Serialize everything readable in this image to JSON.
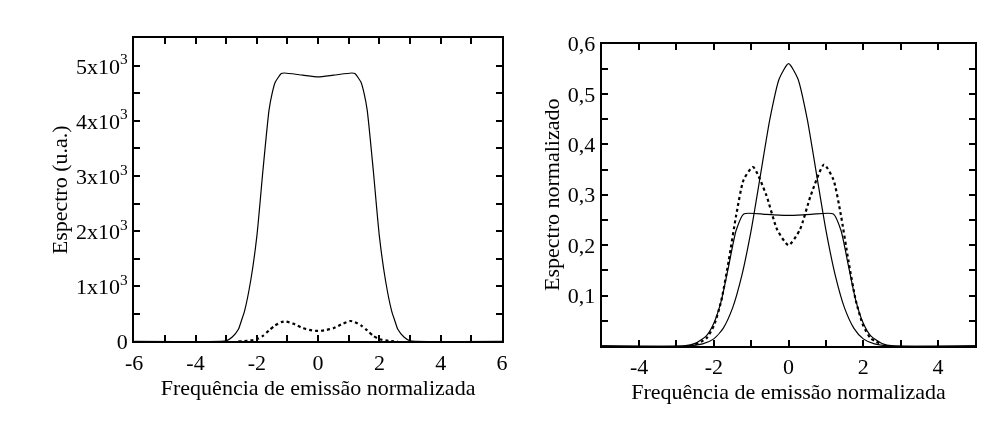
{
  "chart_data": [
    {
      "type": "line",
      "xlabel": "Frequência de emissão normalizada",
      "ylabel": "Espectro (u.a.)",
      "xlim": [
        -6,
        6
      ],
      "ylim": [
        0,
        5500
      ],
      "xticks": [
        -6,
        {
          "value": -5,
          "label": null
        },
        -4,
        {
          "value": -3,
          "label": null
        },
        -2,
        {
          "value": -1,
          "label": null
        },
        0,
        {
          "value": 1,
          "label": null
        },
        2,
        {
          "value": 3,
          "label": null
        },
        4,
        {
          "value": 5,
          "label": null
        },
        6
      ],
      "yticks": [
        0,
        {
          "value": 500,
          "label": null
        },
        {
          "value": 1000,
          "label": "1x10$^{3}$"
        },
        {
          "value": 1500,
          "label": null
        },
        {
          "value": 2000,
          "label": "2x10$^{3}$"
        },
        {
          "value": 2500,
          "label": null
        },
        {
          "value": 3000,
          "label": "3x10$^{3}$"
        },
        {
          "value": 3500,
          "label": null
        },
        {
          "value": 4000,
          "label": "4x10$^{3}$"
        },
        {
          "value": 4500,
          "label": null
        },
        {
          "value": 5000,
          "label": "5x10$^{3}$"
        }
      ],
      "series": [
        {
          "color": "#000000",
          "line_style": "solid",
          "x": [
            -6,
            -3.2,
            -3,
            -2.8,
            -2.6,
            -2.5,
            -2.4,
            -2.2,
            -2,
            -1.8,
            -1.6,
            -1.5,
            -1.4,
            -1.2,
            -1.1,
            -0.5,
            0,
            0.5,
            1.1,
            1.2,
            1.4,
            1.5,
            1.6,
            1.8,
            2,
            2.2,
            2.4,
            2.5,
            2.6,
            2.8,
            3,
            3.2,
            6
          ],
          "values": [
            0,
            0,
            10,
            80,
            220,
            380,
            550,
            1100,
            1900,
            3100,
            4200,
            4500,
            4700,
            4860,
            4870,
            4830,
            4800,
            4830,
            4870,
            4860,
            4700,
            4500,
            4200,
            3100,
            1900,
            1100,
            550,
            380,
            220,
            80,
            10,
            0,
            0
          ]
        },
        {
          "color": "#000000",
          "line_style": "dotted",
          "x": [
            -2.6,
            -2.3,
            -2,
            -1.8,
            -1.6,
            -1.4,
            -1.2,
            -1.05,
            -0.8,
            -0.5,
            -0.2,
            0,
            0.2,
            0.5,
            0.8,
            1.05,
            1.2,
            1.4,
            1.6,
            1.8,
            2,
            2.3,
            2.6
          ],
          "values": [
            0,
            10,
            40,
            100,
            200,
            290,
            350,
            360,
            320,
            240,
            200,
            190,
            200,
            240,
            320,
            370,
            350,
            290,
            200,
            100,
            40,
            10,
            0
          ]
        }
      ]
    },
    {
      "type": "line",
      "xlabel": "Frequência de emissão normalizada",
      "ylabel": "Espectro normalizado",
      "xlim": [
        -5,
        5
      ],
      "ylim": [
        0,
        0.6
      ],
      "xticks": [
        {
          "value": -5,
          "label": null
        },
        -4,
        {
          "value": -3,
          "label": null
        },
        -2,
        {
          "value": -1,
          "label": null
        },
        0,
        {
          "value": 1,
          "label": null
        },
        2,
        {
          "value": 3,
          "label": null
        },
        4,
        {
          "value": 5,
          "label": null
        }
      ],
      "yticks": [
        {
          "value": 0.05,
          "label": null
        },
        {
          "value": 0.1,
          "label": "0,1"
        },
        {
          "value": 0.15,
          "label": null
        },
        {
          "value": 0.2,
          "label": "0,2"
        },
        {
          "value": 0.25,
          "label": null
        },
        {
          "value": 0.3,
          "label": "0,3"
        },
        {
          "value": 0.35,
          "label": null
        },
        {
          "value": 0.4,
          "label": "0,4"
        },
        {
          "value": 0.45,
          "label": null
        },
        {
          "value": 0.5,
          "label": "0,5"
        },
        {
          "value": 0.55,
          "label": null
        },
        {
          "value": 0.6,
          "label": "0,6"
        }
      ],
      "series": [
        {
          "color": "#000000",
          "line_style": "solid",
          "x": [
            -5,
            -2.8,
            -2.5,
            -2.2,
            -2,
            -1.8,
            -1.6,
            -1.4,
            -1.2,
            -0.6,
            0,
            0.6,
            1.2,
            1.4,
            1.6,
            1.8,
            2,
            2.2,
            2.5,
            2.8,
            5
          ],
          "values": [
            0,
            0,
            0.005,
            0.02,
            0.045,
            0.09,
            0.16,
            0.23,
            0.262,
            0.261,
            0.259,
            0.261,
            0.262,
            0.23,
            0.16,
            0.09,
            0.045,
            0.02,
            0.005,
            0,
            0
          ]
        },
        {
          "color": "#000000",
          "line_style": "solid",
          "x": [
            -5,
            -2.7,
            -2.3,
            -2,
            -1.75,
            -1.5,
            -1.25,
            -1,
            -0.75,
            -0.5,
            -0.25,
            0,
            0.25,
            0.5,
            0.75,
            1,
            1.25,
            1.5,
            1.75,
            2,
            2.3,
            2.7,
            5
          ],
          "values": [
            0,
            0,
            0.004,
            0.014,
            0.035,
            0.075,
            0.14,
            0.23,
            0.34,
            0.45,
            0.53,
            0.56,
            0.53,
            0.45,
            0.34,
            0.23,
            0.14,
            0.075,
            0.035,
            0.014,
            0.004,
            0,
            0
          ]
        },
        {
          "color": "#000000",
          "line_style": "dotted",
          "x": [
            -2.5,
            -2.2,
            -2,
            -1.8,
            -1.6,
            -1.4,
            -1.2,
            -0.95,
            -0.6,
            -0.3,
            0,
            0.3,
            0.6,
            0.95,
            1.2,
            1.4,
            1.6,
            1.8,
            2,
            2.2,
            2.5
          ],
          "values": [
            0.003,
            0.015,
            0.04,
            0.09,
            0.17,
            0.26,
            0.33,
            0.355,
            0.3,
            0.23,
            0.2,
            0.23,
            0.3,
            0.36,
            0.33,
            0.26,
            0.17,
            0.09,
            0.04,
            0.015,
            0.003
          ]
        }
      ]
    }
  ]
}
